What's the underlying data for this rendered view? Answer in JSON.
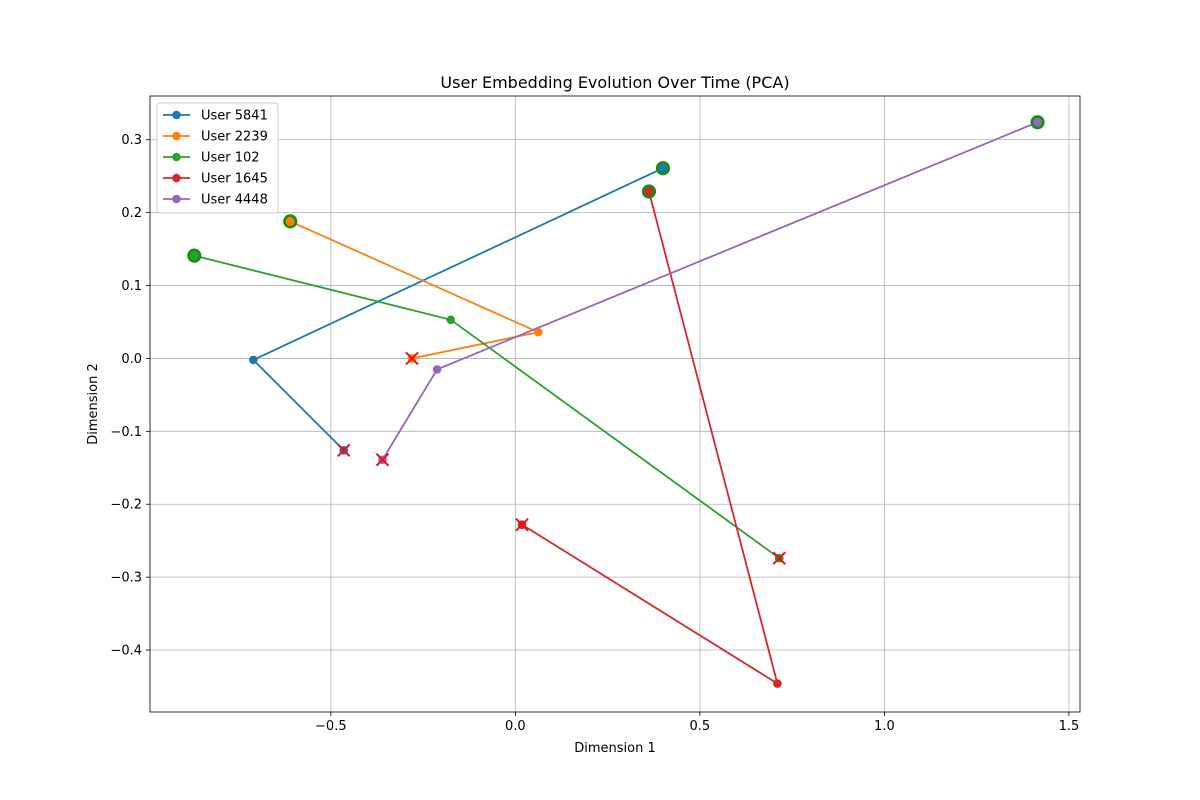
{
  "chart_data": {
    "type": "line",
    "title": "User Embedding Evolution Over Time (PCA)",
    "xlabel": "Dimension 1",
    "ylabel": "Dimension 2",
    "xlim": [
      -0.99,
      1.53
    ],
    "ylim": [
      -0.485,
      0.36
    ],
    "xticks": [
      -0.5,
      0.0,
      0.5,
      1.0,
      1.5
    ],
    "xtick_labels": [
      "−0.5",
      "0.0",
      "0.5",
      "1.0",
      "1.5"
    ],
    "yticks": [
      -0.4,
      -0.3,
      -0.2,
      -0.1,
      0.0,
      0.1,
      0.2,
      0.3
    ],
    "ytick_labels": [
      "−0.4",
      "−0.3",
      "−0.2",
      "−0.1",
      "0.0",
      "0.1",
      "0.2",
      "0.3"
    ],
    "grid": true,
    "legend_position": "top-left",
    "start_marker": "large green-edged circle",
    "end_marker": "red x",
    "series": [
      {
        "name": "User 5841",
        "color": "#1f77b4",
        "points": [
          [
            0.4,
            0.261
          ],
          [
            -0.71,
            -0.002
          ],
          [
            -0.465,
            -0.126
          ]
        ]
      },
      {
        "name": "User 2239",
        "color": "#ff7f0e",
        "points": [
          [
            -0.61,
            0.188
          ],
          [
            0.062,
            0.036
          ],
          [
            -0.28,
            0.0
          ]
        ]
      },
      {
        "name": "User 102",
        "color": "#2ca02c",
        "points": [
          [
            -0.87,
            0.141
          ],
          [
            -0.175,
            0.053
          ],
          [
            0.715,
            -0.274
          ]
        ]
      },
      {
        "name": "User 1645",
        "color": "#d62728",
        "points": [
          [
            0.362,
            0.229
          ],
          [
            0.71,
            -0.446
          ],
          [
            0.018,
            -0.228
          ]
        ]
      },
      {
        "name": "User 4448",
        "color": "#9467bd",
        "points": [
          [
            1.415,
            0.324
          ],
          [
            -0.212,
            -0.015
          ],
          [
            -0.36,
            -0.139
          ]
        ]
      }
    ]
  }
}
